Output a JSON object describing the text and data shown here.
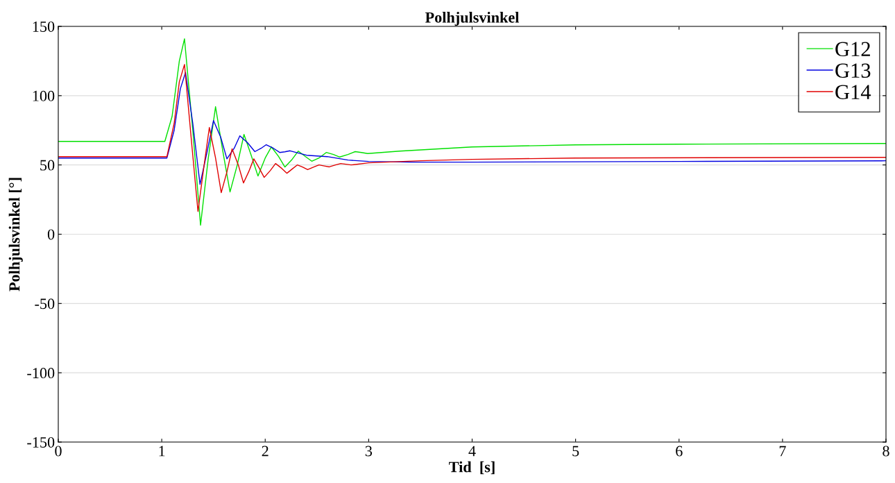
{
  "chart_data": {
    "type": "line",
    "title": "Polhjulsvinkel",
    "xlabel": "Tid  [s]",
    "ylabel": "Polhjulsvinkel [°]",
    "xlim": [
      0,
      8
    ],
    "xticks": [
      0,
      1,
      2,
      3,
      4,
      5,
      6,
      7,
      8
    ],
    "ylim": [
      -150,
      150
    ],
    "yticks": [
      {
        "value": -150,
        "label": "-150"
      },
      {
        "value": -100,
        "label": "-100"
      },
      {
        "value": -50,
        "label": "-50"
      },
      0,
      50,
      100,
      150
    ],
    "grid": "y",
    "legend": "top right",
    "line_style": "solid",
    "marker": "none",
    "series": [
      {
        "name": "G12",
        "color": "#00e000",
        "x": [
          0,
          1.03,
          1.1,
          1.17,
          1.22,
          1.3,
          1.375,
          1.45,
          1.52,
          1.59,
          1.66,
          1.73,
          1.795,
          1.86,
          1.93,
          2.0,
          2.06,
          2.13,
          2.19,
          2.26,
          2.32,
          2.39,
          2.45,
          2.52,
          2.59,
          2.66,
          2.72,
          2.8,
          2.87,
          2.93,
          2.99,
          3.3,
          4.0,
          5.0,
          6.0,
          8.0
        ],
        "values": [
          67,
          67,
          85,
          125,
          141,
          75,
          6.5,
          55,
          92,
          60,
          30.5,
          50,
          72,
          58,
          42,
          55,
          63,
          56,
          48.5,
          54,
          60,
          56,
          52.7,
          55,
          59,
          57.5,
          55.7,
          57.5,
          59.6,
          59,
          58.2,
          60,
          63,
          64.5,
          65,
          65.5
        ]
      },
      {
        "name": "G13",
        "color": "#0000e0",
        "x": [
          0,
          1.05,
          1.12,
          1.18,
          1.23,
          1.3,
          1.37,
          1.44,
          1.5,
          1.57,
          1.63,
          1.7,
          1.755,
          1.83,
          1.9,
          1.96,
          2.01,
          2.08,
          2.14,
          2.19,
          2.24,
          2.4,
          2.6,
          2.8,
          3.0,
          3.4,
          4.0,
          6.0,
          8.0
        ],
        "values": [
          55,
          55,
          75,
          105,
          116.7,
          80,
          36,
          60,
          82,
          70,
          54.4,
          62,
          71,
          66,
          59.6,
          62,
          64.6,
          62,
          59,
          59.5,
          60.2,
          57,
          56,
          53.5,
          52.5,
          52,
          52,
          52.5,
          53
        ]
      },
      {
        "name": "G14",
        "color": "#e00000",
        "x": [
          0,
          1.05,
          1.12,
          1.17,
          1.22,
          1.29,
          1.35,
          1.41,
          1.46,
          1.52,
          1.575,
          1.63,
          1.68,
          1.74,
          1.79,
          1.84,
          1.89,
          1.94,
          1.99,
          2.05,
          2.1,
          2.16,
          2.21,
          2.26,
          2.31,
          2.36,
          2.41,
          2.47,
          2.52,
          2.57,
          2.62,
          2.68,
          2.73,
          2.78,
          2.83,
          3.0,
          3.5,
          4.0,
          5.0,
          8.0
        ],
        "values": [
          56,
          56,
          80,
          110,
          122.5,
          65,
          16.5,
          50,
          77,
          55,
          30,
          45,
          61.6,
          50,
          37,
          45,
          54.4,
          48,
          41,
          46,
          51,
          47.5,
          44,
          47,
          50,
          48.5,
          46.6,
          48.5,
          50,
          49.3,
          48.6,
          50,
          51,
          50.5,
          50,
          51.5,
          53,
          54,
          55,
          55.5
        ]
      }
    ]
  }
}
